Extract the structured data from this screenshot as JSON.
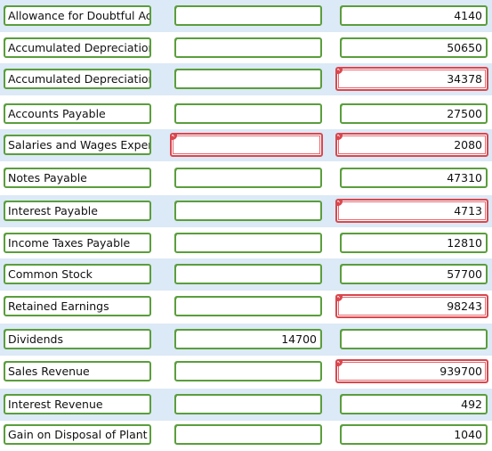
{
  "colors": {
    "ok_border": "#5a9e3c",
    "bad_border": "#d9474e",
    "row_alt": "#dce9f6"
  },
  "rows": [
    {
      "account": "Allowance for Doubtful Acc",
      "debit": "",
      "credit": "4140",
      "debit_status": "ok",
      "credit_status": "ok"
    },
    {
      "account": "Accumulated Depreciation",
      "debit": "",
      "credit": "50650",
      "debit_status": "ok",
      "credit_status": "ok"
    },
    {
      "account": "Accumulated Depreciation",
      "debit": "",
      "credit": "34378",
      "debit_status": "ok",
      "credit_status": "incorrect"
    },
    {
      "account": "Accounts Payable",
      "debit": "",
      "credit": "27500",
      "debit_status": "ok",
      "credit_status": "ok"
    },
    {
      "account": "Salaries and Wages Expen",
      "debit": "",
      "credit": "2080",
      "debit_status": "incorrect",
      "credit_status": "incorrect"
    },
    {
      "account": "Notes Payable",
      "debit": "",
      "credit": "47310",
      "debit_status": "ok",
      "credit_status": "ok"
    },
    {
      "account": "Interest Payable",
      "debit": "",
      "credit": "4713",
      "debit_status": "ok",
      "credit_status": "incorrect"
    },
    {
      "account": "Income Taxes Payable",
      "debit": "",
      "credit": "12810",
      "debit_status": "ok",
      "credit_status": "ok"
    },
    {
      "account": "Common Stock",
      "debit": "",
      "credit": "57700",
      "debit_status": "ok",
      "credit_status": "ok"
    },
    {
      "account": "Retained Earnings",
      "debit": "",
      "credit": "98243",
      "debit_status": "ok",
      "credit_status": "incorrect"
    },
    {
      "account": "Dividends",
      "debit": "14700",
      "credit": "",
      "debit_status": "ok",
      "credit_status": "ok"
    },
    {
      "account": "Sales Revenue",
      "debit": "",
      "credit": "939700",
      "debit_status": "ok",
      "credit_status": "incorrect"
    },
    {
      "account": "Interest Revenue",
      "debit": "",
      "credit": "492",
      "debit_status": "ok",
      "credit_status": "ok"
    },
    {
      "account": "Gain on Disposal of Plant A",
      "debit": "",
      "credit": "1040",
      "debit_status": "ok",
      "credit_status": "ok"
    }
  ]
}
